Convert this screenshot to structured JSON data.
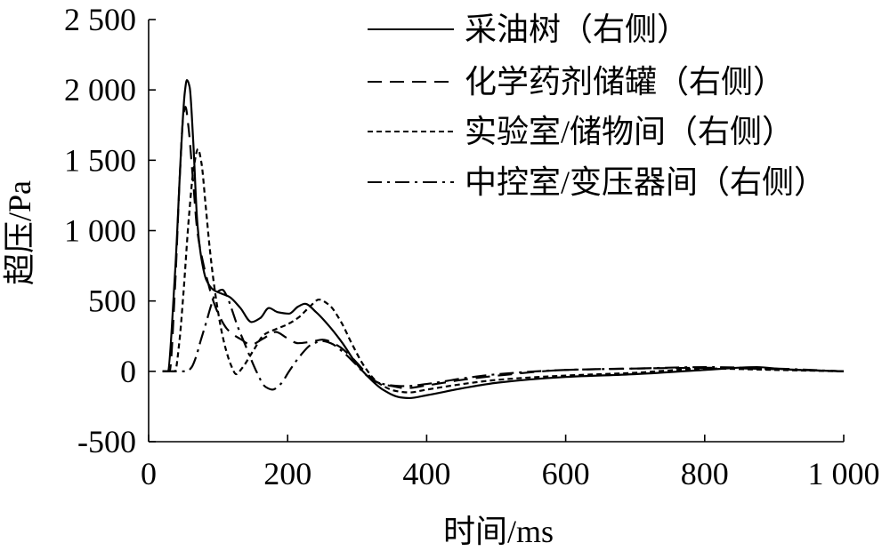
{
  "chart_data": {
    "type": "line",
    "xlabel": "时间/ms",
    "ylabel": "超压/Pa",
    "xlim": [
      0,
      1000
    ],
    "ylim": [
      -500,
      2500
    ],
    "xticks": [
      0,
      200,
      400,
      600,
      800,
      1000
    ],
    "xtick_labels": [
      "0",
      "200",
      "400",
      "600",
      "800",
      "1 000"
    ],
    "yticks": [
      -500,
      0,
      500,
      1000,
      1500,
      2000,
      2500
    ],
    "ytick_labels": [
      "-500",
      "0",
      "500",
      "1 000",
      "1 500",
      "2 000",
      "2 500"
    ],
    "grid": false,
    "legend_position": "top-right",
    "series": [
      {
        "name": "采油树（右侧）",
        "line_style": "solid",
        "x": [
          20,
          27,
          38,
          47,
          52,
          55,
          59,
          64,
          70,
          76,
          83,
          93,
          106,
          116,
          132,
          148,
          161,
          173,
          186,
          202,
          215,
          225,
          241,
          260,
          279,
          298,
          318,
          337,
          362,
          375,
          400,
          452,
          503,
          600,
          700,
          800,
          875,
          913,
          1000
        ],
        "y": [
          0,
          0,
          700,
          1600,
          1980,
          2070,
          2020,
          1650,
          1060,
          800,
          650,
          580,
          550,
          530,
          450,
          350,
          380,
          450,
          420,
          410,
          460,
          480,
          420,
          320,
          200,
          60,
          -50,
          -130,
          -185,
          -190,
          -170,
          -120,
          -80,
          -40,
          -20,
          10,
          30,
          15,
          0
        ]
      },
      {
        "name": "化学药剂储罐（右侧）",
        "line_style": "long-dash",
        "x": [
          20,
          30,
          38,
          45,
          50,
          53,
          57,
          64,
          70,
          78,
          86,
          93,
          103,
          113,
          122,
          132,
          147,
          164,
          183,
          198,
          215,
          234,
          250,
          273,
          292,
          311,
          330,
          356,
          369,
          400,
          452,
          503,
          600,
          700,
          800,
          900,
          1000
        ],
        "y": [
          0,
          0,
          600,
          1400,
          1820,
          1880,
          1750,
          1350,
          1000,
          780,
          620,
          500,
          380,
          300,
          260,
          230,
          190,
          230,
          280,
          240,
          200,
          210,
          225,
          180,
          100,
          0,
          -80,
          -110,
          -120,
          -100,
          -60,
          -30,
          10,
          20,
          25,
          15,
          0
        ]
      },
      {
        "name": "实验室/储物间（右侧）",
        "line_style": "short-dash",
        "x": [
          20,
          38,
          44,
          50,
          58,
          65,
          71,
          76,
          82,
          88,
          94,
          100,
          106,
          112,
          118,
          126,
          134,
          151,
          166,
          183,
          198,
          215,
          232,
          245,
          260,
          277,
          292,
          311,
          330,
          356,
          375,
          400,
          452,
          503,
          600,
          700,
          760,
          800,
          900,
          1000
        ],
        "y": [
          0,
          0,
          200,
          550,
          1100,
          1450,
          1580,
          1480,
          1180,
          870,
          620,
          420,
          260,
          140,
          50,
          -20,
          20,
          150,
          260,
          300,
          330,
          380,
          460,
          510,
          470,
          350,
          200,
          30,
          -80,
          -140,
          -150,
          -130,
          -90,
          -60,
          -30,
          -10,
          10,
          20,
          10,
          0
        ]
      },
      {
        "name": "中控室/变压器间（右侧）",
        "line_style": "dash-dot",
        "x": [
          20,
          55,
          62,
          68,
          75,
          83,
          90,
          96,
          106,
          113,
          119,
          128,
          138,
          147,
          155,
          168,
          178,
          190,
          202,
          218,
          234,
          250,
          262,
          279,
          296,
          314,
          330,
          350,
          369,
          400,
          452,
          503,
          600,
          700,
          800,
          900,
          1000
        ],
        "y": [
          0,
          0,
          30,
          100,
          220,
          350,
          470,
          550,
          580,
          530,
          450,
          320,
          200,
          90,
          0,
          -110,
          -130,
          -90,
          0,
          110,
          190,
          215,
          200,
          140,
          60,
          -30,
          -80,
          -100,
          -105,
          -90,
          -50,
          -20,
          10,
          20,
          30,
          20,
          0
        ]
      }
    ]
  }
}
